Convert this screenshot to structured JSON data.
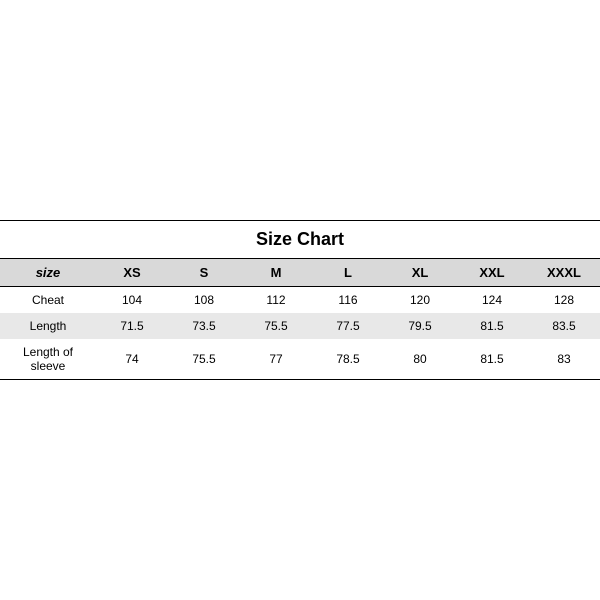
{
  "size_chart": {
    "type": "table",
    "title": "Size Chart",
    "title_fontsize": 18,
    "header_fontsize": 13,
    "cell_fontsize": 12,
    "background_color": "#ffffff",
    "header_bg_color": "#d9d9d9",
    "alt_row_bg_color": "#e8e8e8",
    "border_color": "#000000",
    "columns": [
      "size",
      "XS",
      "S",
      "M",
      "L",
      "XL",
      "XXL",
      "XXXL"
    ],
    "rows": [
      {
        "label": "Cheat",
        "values": [
          "104",
          "108",
          "112",
          "116",
          "120",
          "124",
          "128"
        ],
        "bg": "white"
      },
      {
        "label": "Length",
        "values": [
          "71.5",
          "73.5",
          "75.5",
          "77.5",
          "79.5",
          "81.5",
          "83.5"
        ],
        "bg": "gray"
      },
      {
        "label": "Length of sleeve",
        "values": [
          "74",
          "75.5",
          "77",
          "78.5",
          "80",
          "81.5",
          "83"
        ],
        "bg": "white"
      }
    ]
  }
}
